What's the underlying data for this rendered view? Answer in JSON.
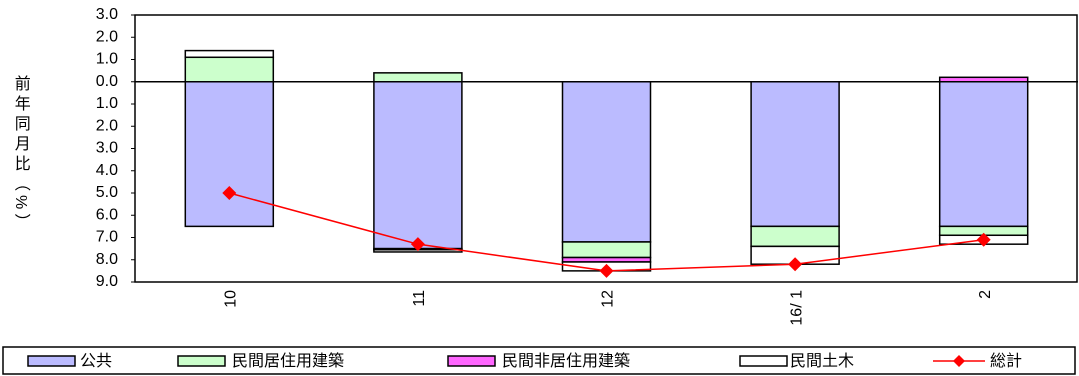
{
  "chart_data": {
    "type": "bar",
    "y_label": "前年同月比（%）",
    "categories": [
      "10",
      "11",
      "12",
      "16/ 1",
      "2"
    ],
    "series": [
      {
        "name": "公共",
        "color": "#bbbbff",
        "values": [
          -6.5,
          -7.5,
          -7.2,
          -6.5,
          -6.5
        ]
      },
      {
        "name": "民間居住用建築",
        "color": "#ccffcc",
        "values": [
          1.1,
          0.4,
          -0.7,
          -0.9,
          -0.4
        ]
      },
      {
        "name": "民間非居住用建築",
        "color": "#ff66ff",
        "values": [
          0,
          -0.05,
          -0.2,
          0,
          0.2
        ]
      },
      {
        "name": "民間土木",
        "color": "#ffffff",
        "values": [
          0.3,
          -0.1,
          -0.4,
          -0.8,
          -0.4
        ]
      },
      {
        "name": "総計",
        "color": "#ff0000",
        "type": "line",
        "values": [
          -5.0,
          -7.3,
          -8.5,
          -8.2,
          -7.1
        ]
      }
    ],
    "ylim": [
      -9,
      3
    ],
    "yticks": [
      {
        "value": 3,
        "label": "3.0"
      },
      {
        "value": 2,
        "label": "2.0"
      },
      {
        "value": 1,
        "label": "1.0"
      },
      {
        "value": 0,
        "label": "0.0"
      },
      {
        "value": -1,
        "label": "1.0"
      },
      {
        "value": -2,
        "label": "2.0"
      },
      {
        "value": -3,
        "label": "3.0"
      },
      {
        "value": -4,
        "label": "4.0"
      },
      {
        "value": -5,
        "label": "5.0"
      },
      {
        "value": -6,
        "label": "6.0"
      },
      {
        "value": -7,
        "label": "7.0"
      },
      {
        "value": -8,
        "label": "8.0"
      },
      {
        "value": -9,
        "label": "9.0"
      }
    ],
    "grid": false,
    "legend": "bottom"
  }
}
